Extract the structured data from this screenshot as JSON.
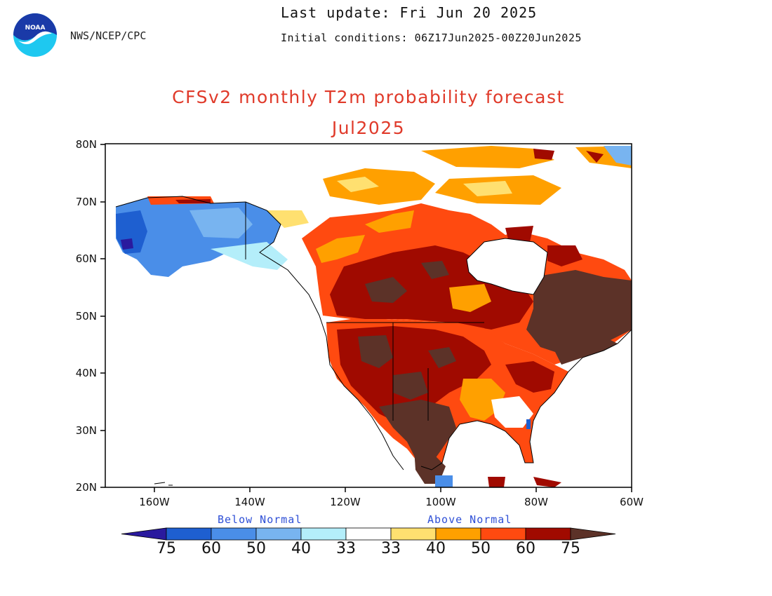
{
  "header": {
    "agency": "NWS/NCEP/CPC",
    "last_update": "Last update: Fri Jun 20 2025",
    "initial_conditions": "Initial conditions: 06Z17Jun2025-00Z20Jun2025",
    "logo_text": "NOAA"
  },
  "title": "CFSv2 monthly T2m probability forecast",
  "subtitle": "Jul2025",
  "map": {
    "lat_ticks": [
      "80N",
      "70N",
      "60N",
      "50N",
      "40N",
      "30N",
      "20N"
    ],
    "lon_ticks": [
      "160W",
      "140W",
      "120W",
      "100W",
      "80W",
      "60W"
    ],
    "lat_range": [
      20,
      80
    ],
    "lon_range": [
      -170,
      -60
    ],
    "regions": [
      {
        "name": "Alaska",
        "category": "below-50"
      },
      {
        "name": "Alaska west coast",
        "category": "below-60"
      },
      {
        "name": "Yukon / BC coast",
        "category": "below-40"
      },
      {
        "name": "Western Canada",
        "category": "above-60"
      },
      {
        "name": "Central Canada",
        "category": "above-75"
      },
      {
        "name": "Eastern Canada / Quebec",
        "category": "above-75plus"
      },
      {
        "name": "Canadian Arctic",
        "category": "above-50"
      },
      {
        "name": "Western US",
        "category": "above-75"
      },
      {
        "name": "Southwest US",
        "category": "above-75plus"
      },
      {
        "name": "Northeast US",
        "category": "above-75plus"
      },
      {
        "name": "Southeast US",
        "category": "above-60"
      },
      {
        "name": "Mexico",
        "category": "above-75plus"
      }
    ]
  },
  "legend": {
    "below_label": "Below Normal",
    "above_label": "Above Normal",
    "labels": [
      "75",
      "60",
      "50",
      "40",
      "33",
      "33",
      "40",
      "50",
      "60",
      "75"
    ],
    "colors": [
      "#2a1a9e",
      "#1e5fd0",
      "#4a8ee8",
      "#78b4f0",
      "#b4eefa",
      "#ffffff",
      "#ffe070",
      "#ffa000",
      "#ff4a10",
      "#a00a00",
      "#5c3228"
    ]
  }
}
